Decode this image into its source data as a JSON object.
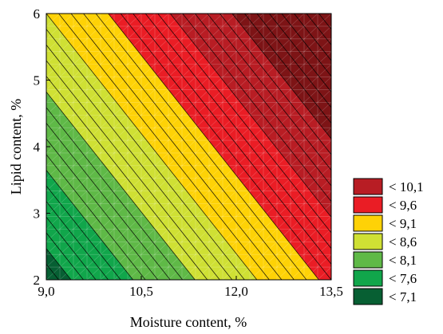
{
  "chart_data": {
    "type": "heatmap",
    "subtype": "filled-contour",
    "title": "",
    "xlabel": "Moisture content, %",
    "ylabel": "Lipid content, %",
    "xlim": [
      9.0,
      13.5
    ],
    "ylim": [
      2,
      6
    ],
    "x_ticks": [
      {
        "value": 9.0,
        "label": "9,0"
      },
      {
        "value": 10.5,
        "label": "10,5"
      },
      {
        "value": 12.0,
        "label": "12,0"
      },
      {
        "value": 13.5,
        "label": "13,5"
      }
    ],
    "y_ticks": [
      {
        "value": 2,
        "label": "2"
      },
      {
        "value": 3,
        "label": "3"
      },
      {
        "value": 4,
        "label": "4"
      },
      {
        "value": 5,
        "label": "5"
      },
      {
        "value": 6,
        "label": "6"
      }
    ],
    "z_corners": [
      {
        "x": 9.0,
        "y": 2,
        "z": 6.9
      },
      {
        "x": 13.5,
        "y": 2,
        "z": 9.2
      },
      {
        "x": 9.0,
        "y": 6,
        "z": 8.6
      },
      {
        "x": 13.5,
        "y": 6,
        "z": 10.8
      }
    ],
    "contour_interval": 0.1,
    "legend_position": "bottom-right",
    "legend": [
      {
        "label": "< 10,1",
        "color": "#b81d24"
      },
      {
        "label": "< 9,6",
        "color": "#ea1d25"
      },
      {
        "label": "< 9,1",
        "color": "#fed206"
      },
      {
        "label": "< 8,6",
        "color": "#cfe034"
      },
      {
        "label": "< 8,1",
        "color": "#5fb947"
      },
      {
        "label": "< 7,6",
        "color": "#11a64b"
      },
      {
        "label": "< 7,1",
        "color": "#075f33"
      }
    ],
    "bands": [
      {
        "max": 7.1,
        "color": "#075f33"
      },
      {
        "max": 7.6,
        "color": "#11a64b"
      },
      {
        "max": 8.1,
        "color": "#5fb947"
      },
      {
        "max": 8.6,
        "color": "#cfe034"
      },
      {
        "max": 9.1,
        "color": "#fed206"
      },
      {
        "max": 9.6,
        "color": "#ea1d25"
      },
      {
        "max": 10.1,
        "color": "#b81d24"
      },
      {
        "max": 99,
        "color": "#7d1416"
      }
    ]
  }
}
